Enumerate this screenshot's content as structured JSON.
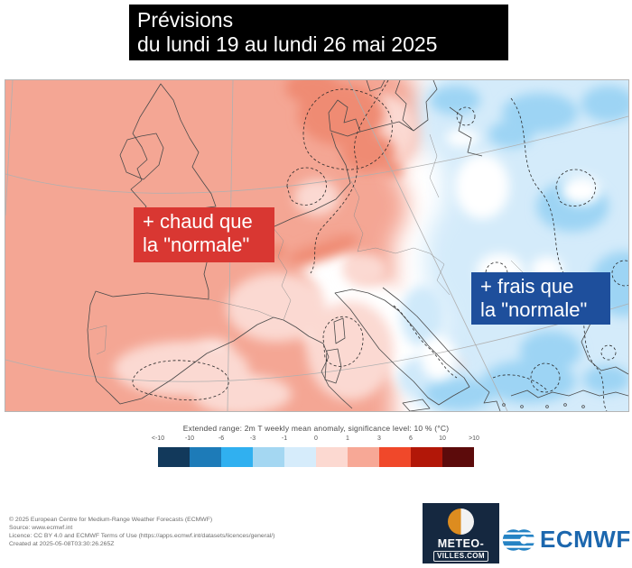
{
  "title": {
    "line1": "Prévisions",
    "line2": "du lundi 19 au lundi 26 mai 2025"
  },
  "map_labels": {
    "warm": {
      "line1": "+ chaud que",
      "line2": "la \"normale\"",
      "color": "#d93732"
    },
    "cool": {
      "line1": "+ frais que",
      "line2": "la \"normale\"",
      "color": "#1e4f9c"
    }
  },
  "legend": {
    "title": "Extended range: 2m T weekly mean anomaly, significance level: 10 % (°C)",
    "ticks": [
      "<-10",
      "-10",
      "-6",
      "-3",
      "-1",
      "0",
      "1",
      "3",
      "6",
      "10",
      ">10"
    ],
    "colors": [
      "#12395b",
      "#1d7bb8",
      "#30b0f0",
      "#a4d7f2",
      "#d6ecfb",
      "#fcd9d1",
      "#f7a896",
      "#f0482a",
      "#b21708",
      "#5c0b0b"
    ]
  },
  "credits": {
    "lines": [
      "© 2025 European Centre for Medium-Range Weather Forecasts (ECMWF)",
      "Source: www.ecmwf.int",
      "Licence: CC BY 4.0 and ECMWF Terms of Use (https://apps.ecmwf.int/datasets/licences/general/)",
      "Created at 2025-05-08T03:30:26.265Z"
    ]
  },
  "logos": {
    "meteovilles": {
      "line1": "METEO-",
      "line2": "VILLES.COM",
      "bg": "#152840",
      "accent": "#dd8c1f"
    },
    "ecmwf": {
      "text": "ECMWF",
      "color": "#1c67ae",
      "icon_color": "#2583c4"
    }
  },
  "map_palette": {
    "warm": "#f4a694",
    "warm_strong": "#ef8b73",
    "warm_light": "#fbd9d2",
    "cool": "#d4ebfa",
    "cool_strong": "#9dd4f4"
  }
}
